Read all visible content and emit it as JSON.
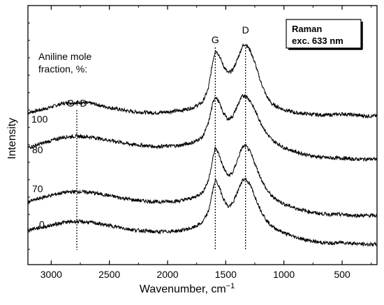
{
  "chart_data": {
    "type": "line",
    "xlabel": "Wavenumber, cm",
    "xlabel_superscript": "−1",
    "ylabel": "Intensity",
    "xlim": [
      3200,
      200
    ],
    "x_reversed": true,
    "xticks": [
      3000,
      2500,
      2000,
      1500,
      1000,
      500
    ],
    "y_ticks_labeled": false,
    "grid": false,
    "inset_legend": {
      "lines": [
        "Raman",
        "exc. 633 nm"
      ],
      "position": "top-right"
    },
    "note_lines": [
      "Aniline mole",
      "fraction, %:"
    ],
    "reference_lines": [
      {
        "label": "G",
        "x": 1590
      },
      {
        "label": "D",
        "x": 1330
      },
      {
        "label": "G+D",
        "x": 2780
      }
    ],
    "series": [
      {
        "name": "100",
        "x": [
          3200,
          3050,
          2900,
          2780,
          2650,
          2500,
          2300,
          2100,
          1900,
          1780,
          1700,
          1650,
          1610,
          1590,
          1560,
          1520,
          1480,
          1440,
          1400,
          1360,
          1330,
          1290,
          1250,
          1200,
          1150,
          1100,
          1000,
          900,
          800,
          700,
          600,
          500,
          400,
          300,
          200
        ],
        "y": [
          0.02,
          0.06,
          0.11,
          0.12,
          0.11,
          0.07,
          0.03,
          0.02,
          0.04,
          0.07,
          0.12,
          0.25,
          0.52,
          0.62,
          0.58,
          0.47,
          0.4,
          0.43,
          0.53,
          0.65,
          0.68,
          0.62,
          0.5,
          0.32,
          0.18,
          0.1,
          0.05,
          0.02,
          0.01,
          0.0,
          0.0,
          0.01,
          0.0,
          -0.01,
          -0.01
        ]
      },
      {
        "name": "80",
        "x": [
          3200,
          3050,
          2900,
          2780,
          2650,
          2500,
          2300,
          2100,
          1900,
          1780,
          1700,
          1650,
          1610,
          1590,
          1560,
          1520,
          1480,
          1440,
          1400,
          1360,
          1330,
          1290,
          1250,
          1200,
          1150,
          1100,
          1000,
          900,
          800,
          700,
          600,
          500,
          400,
          300,
          200
        ],
        "y": [
          0.0,
          0.05,
          0.1,
          0.11,
          0.1,
          0.07,
          0.03,
          0.01,
          0.02,
          0.05,
          0.1,
          0.23,
          0.43,
          0.49,
          0.44,
          0.33,
          0.27,
          0.3,
          0.4,
          0.49,
          0.5,
          0.45,
          0.36,
          0.24,
          0.14,
          0.07,
          0.0,
          -0.04,
          -0.07,
          -0.09,
          -0.1,
          -0.1,
          -0.11,
          -0.11,
          -0.11
        ]
      },
      {
        "name": "70",
        "x": [
          3200,
          3050,
          2900,
          2780,
          2650,
          2500,
          2300,
          2100,
          1900,
          1780,
          1700,
          1650,
          1610,
          1590,
          1560,
          1520,
          1480,
          1440,
          1400,
          1360,
          1330,
          1290,
          1250,
          1200,
          1150,
          1100,
          1000,
          900,
          800,
          700,
          600,
          500,
          400,
          300,
          200
        ],
        "y": [
          0.0,
          0.05,
          0.09,
          0.1,
          0.09,
          0.06,
          0.02,
          0.0,
          0.01,
          0.04,
          0.09,
          0.2,
          0.42,
          0.52,
          0.46,
          0.33,
          0.25,
          0.28,
          0.4,
          0.52,
          0.54,
          0.48,
          0.37,
          0.23,
          0.12,
          0.05,
          -0.02,
          -0.06,
          -0.09,
          -0.11,
          -0.12,
          -0.12,
          -0.13,
          -0.13,
          -0.13
        ]
      },
      {
        "name": "0",
        "x": [
          3200,
          3050,
          2900,
          2780,
          2650,
          2500,
          2300,
          2100,
          1900,
          1780,
          1700,
          1650,
          1610,
          1590,
          1560,
          1520,
          1480,
          1440,
          1400,
          1360,
          1330,
          1290,
          1250,
          1200,
          1150,
          1100,
          1000,
          900,
          800,
          700,
          600,
          500,
          400,
          300,
          200
        ],
        "y": [
          0.0,
          0.03,
          0.07,
          0.08,
          0.07,
          0.04,
          0.0,
          -0.02,
          -0.01,
          0.02,
          0.07,
          0.17,
          0.38,
          0.48,
          0.42,
          0.3,
          0.22,
          0.25,
          0.36,
          0.47,
          0.49,
          0.43,
          0.32,
          0.19,
          0.09,
          0.03,
          -0.03,
          -0.07,
          -0.1,
          -0.12,
          -0.13,
          -0.12,
          -0.13,
          -0.14,
          -0.14
        ]
      }
    ]
  }
}
